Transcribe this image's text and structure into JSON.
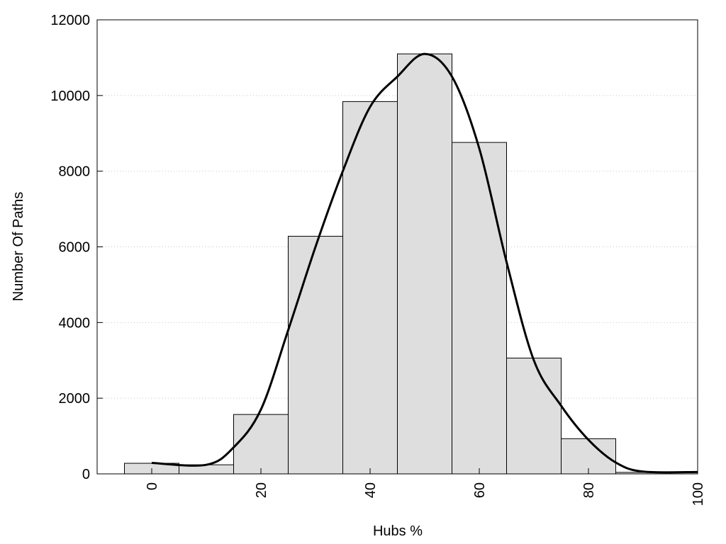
{
  "chart_data": {
    "type": "bar",
    "xlabel": "Hubs %",
    "ylabel": "Number Of Paths",
    "xlim": [
      -10,
      100
    ],
    "ylim": [
      0,
      12000
    ],
    "x_ticks": [
      0,
      20,
      40,
      60,
      80,
      100
    ],
    "y_ticks": [
      0,
      2000,
      4000,
      6000,
      8000,
      10000,
      12000
    ],
    "bin_width": 10,
    "bins": [
      {
        "center": 0,
        "value": 280
      },
      {
        "center": 10,
        "value": 240
      },
      {
        "center": 20,
        "value": 1570
      },
      {
        "center": 30,
        "value": 6280
      },
      {
        "center": 40,
        "value": 9840
      },
      {
        "center": 50,
        "value": 11100
      },
      {
        "center": 60,
        "value": 8760
      },
      {
        "center": 70,
        "value": 3060
      },
      {
        "center": 80,
        "value": 930
      },
      {
        "center": 90,
        "value": 40
      },
      {
        "center": 100,
        "value": 40
      }
    ],
    "curve": [
      {
        "x": 0,
        "y": 290
      },
      {
        "x": 10,
        "y": 240
      },
      {
        "x": 15,
        "y": 700
      },
      {
        "x": 20,
        "y": 1700
      },
      {
        "x": 25,
        "y": 3800
      },
      {
        "x": 30,
        "y": 6000
      },
      {
        "x": 35,
        "y": 8000
      },
      {
        "x": 40,
        "y": 9700
      },
      {
        "x": 45,
        "y": 10500
      },
      {
        "x": 50,
        "y": 11100
      },
      {
        "x": 55,
        "y": 10500
      },
      {
        "x": 60,
        "y": 8600
      },
      {
        "x": 65,
        "y": 5600
      },
      {
        "x": 70,
        "y": 3000
      },
      {
        "x": 75,
        "y": 1800
      },
      {
        "x": 80,
        "y": 900
      },
      {
        "x": 85,
        "y": 300
      },
      {
        "x": 90,
        "y": 60
      },
      {
        "x": 100,
        "y": 50
      }
    ],
    "grid": {
      "y": true,
      "x": false
    },
    "colors": {
      "bar_fill": "#dedede",
      "bar_stroke": "#000000",
      "curve": "#000000",
      "grid": "#c8c8c8"
    }
  }
}
